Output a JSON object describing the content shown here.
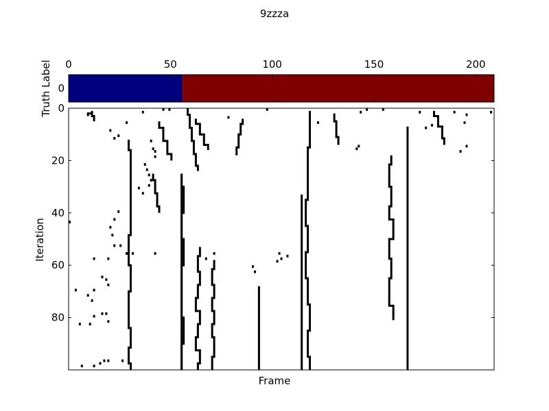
{
  "chart_data": [
    {
      "type": "heatmap",
      "title": "9zzza",
      "ylabel": "Truth Label",
      "xlim": [
        0,
        209
      ],
      "xticks": [
        0,
        50,
        100,
        150,
        200
      ],
      "yticks": [
        0
      ],
      "segments": [
        {
          "from": 0,
          "to": 56,
          "label_value": 0,
          "color": "#00007f"
        },
        {
          "from": 56,
          "to": 209,
          "label_value": 1,
          "color": "#7f0000"
        }
      ]
    },
    {
      "type": "heatmap",
      "xlabel": "Frame",
      "ylabel": "Iteration",
      "xlim": [
        0,
        209
      ],
      "ylim": [
        0,
        100
      ],
      "yticks": [
        0,
        20,
        40,
        60,
        80
      ],
      "cell_color": "#000000",
      "background": "#ffffff",
      "lines": [
        {
          "x": [
            55,
            55
          ],
          "y": [
            25,
            100
          ]
        },
        {
          "x": [
            114,
            114
          ],
          "y": [
            33,
            100
          ]
        },
        {
          "x": [
            166,
            166
          ],
          "y": [
            7,
            100
          ]
        },
        {
          "x": [
            93,
            93
          ],
          "y": [
            68,
            100
          ]
        },
        {
          "x": [
            58,
            59,
            60,
            61,
            62,
            63
          ],
          "y": [
            0,
            5,
            10,
            15,
            20,
            24
          ]
        },
        {
          "x": [
            118,
            118,
            117,
            117,
            116,
            117,
            116,
            117,
            118,
            117,
            118
          ],
          "y": [
            1,
            10,
            20,
            30,
            40,
            50,
            60,
            70,
            80,
            90,
            100
          ]
        },
        {
          "x": [
            29,
            30,
            30,
            30,
            29,
            30,
            29,
            29,
            30,
            29,
            30
          ],
          "y": [
            12,
            20,
            30,
            42,
            55,
            65,
            75,
            80,
            88,
            95,
            100
          ]
        },
        {
          "x": [
            55,
            56,
            55,
            56,
            55,
            55,
            56,
            55,
            55
          ],
          "y": [
            25,
            35,
            45,
            55,
            65,
            75,
            85,
            95,
            100
          ]
        },
        {
          "x": [
            64,
            63,
            64,
            63,
            62,
            64,
            63,
            62,
            64,
            63
          ],
          "y": [
            53,
            60,
            65,
            70,
            75,
            80,
            85,
            90,
            95,
            100
          ]
        },
        {
          "x": [
            71,
            70,
            71,
            70,
            71,
            70,
            71,
            70
          ],
          "y": [
            58,
            65,
            70,
            75,
            80,
            85,
            90,
            100
          ]
        },
        {
          "x": [
            158,
            157,
            158,
            157,
            159,
            157,
            158,
            157,
            159
          ],
          "y": [
            18,
            25,
            35,
            40,
            45,
            55,
            60,
            70,
            81
          ]
        },
        {
          "x": [
            130,
            131,
            132
          ],
          "y": [
            2,
            8,
            14
          ]
        },
        {
          "x": [
            62,
            64,
            66,
            68
          ],
          "y": [
            4,
            8,
            12,
            16
          ]
        },
        {
          "x": [
            85,
            84,
            83,
            82
          ],
          "y": [
            4,
            8,
            12,
            18
          ]
        },
        {
          "x": [
            179,
            181,
            183,
            184
          ],
          "y": [
            1,
            5,
            9,
            14
          ]
        },
        {
          "x": [
            44,
            46,
            48,
            50
          ],
          "y": [
            5,
            10,
            15,
            20
          ]
        },
        {
          "x": [
            41,
            42,
            43,
            44
          ],
          "y": [
            25,
            30,
            35,
            40
          ]
        },
        {
          "x": [
            9,
            11,
            12
          ],
          "y": [
            3,
            1,
            5
          ]
        }
      ],
      "points": [
        [
          36,
          1
        ],
        [
          46,
          0
        ],
        [
          49,
          0
        ],
        [
          78,
          3
        ],
        [
          97,
          0
        ],
        [
          146,
          0
        ],
        [
          154,
          0
        ],
        [
          143,
          1
        ],
        [
          172,
          1
        ],
        [
          175,
          7
        ],
        [
          189,
          1
        ],
        [
          195,
          2
        ],
        [
          207,
          1
        ],
        [
          178,
          6
        ],
        [
          194,
          5
        ],
        [
          20,
          8
        ],
        [
          22,
          11
        ],
        [
          28,
          5
        ],
        [
          24,
          10
        ],
        [
          122,
          5
        ],
        [
          141,
          15
        ],
        [
          142,
          14
        ],
        [
          192,
          16
        ],
        [
          195,
          14
        ],
        [
          37,
          21
        ],
        [
          38,
          23
        ],
        [
          39,
          25
        ],
        [
          40,
          27
        ],
        [
          39,
          29
        ],
        [
          34,
          30
        ],
        [
          36,
          32
        ],
        [
          42,
          18
        ],
        [
          40,
          12
        ],
        [
          41,
          15
        ],
        [
          42,
          16
        ],
        [
          0,
          43
        ],
        [
          24,
          39
        ],
        [
          22,
          42
        ],
        [
          20,
          45
        ],
        [
          21,
          48
        ],
        [
          22,
          52
        ],
        [
          25,
          52
        ],
        [
          19,
          57
        ],
        [
          28,
          55
        ],
        [
          29,
          57
        ],
        [
          31,
          55
        ],
        [
          42,
          55
        ],
        [
          103,
          55
        ],
        [
          104,
          57
        ],
        [
          102,
          58
        ],
        [
          107,
          56
        ],
        [
          12,
          57
        ],
        [
          67,
          57
        ],
        [
          71,
          55
        ],
        [
          91,
          62
        ],
        [
          90,
          60
        ],
        [
          16,
          64
        ],
        [
          18,
          65
        ],
        [
          19,
          67
        ],
        [
          12,
          69
        ],
        [
          3,
          69
        ],
        [
          9,
          71
        ],
        [
          11,
          73
        ],
        [
          16,
          78
        ],
        [
          18,
          78
        ],
        [
          19,
          81
        ],
        [
          12,
          79
        ],
        [
          5,
          82
        ],
        [
          10,
          82
        ],
        [
          6,
          98
        ],
        [
          12,
          98
        ],
        [
          15,
          97
        ],
        [
          19,
          96
        ],
        [
          17,
          96
        ],
        [
          26,
          96
        ]
      ]
    }
  ]
}
